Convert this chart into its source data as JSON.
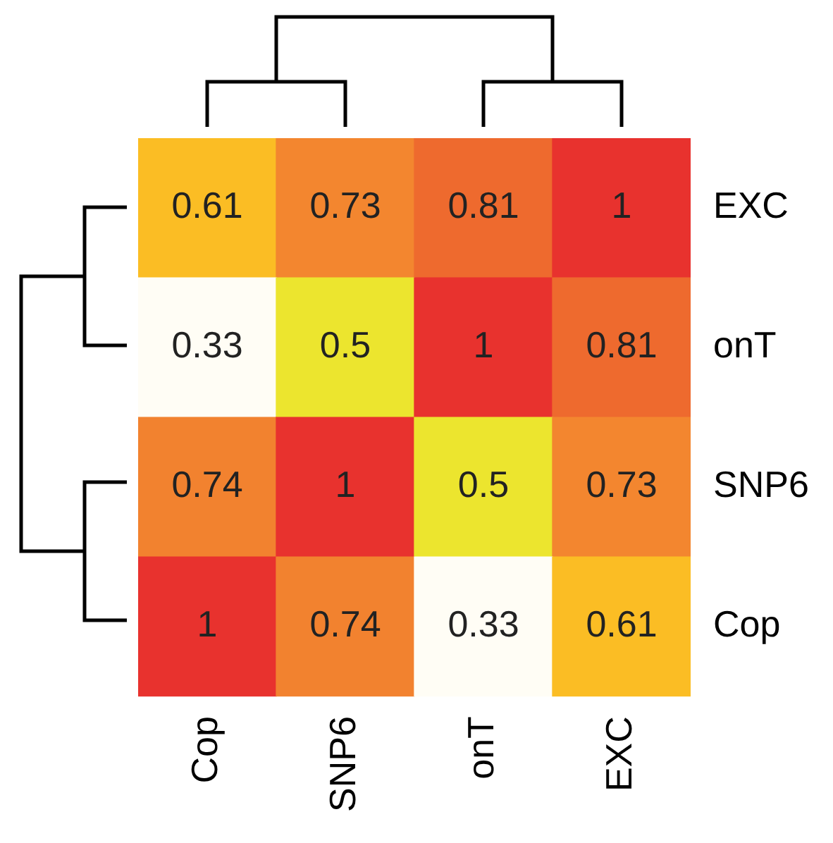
{
  "chart_data": {
    "type": "heatmap",
    "categories": [
      "Cop",
      "SNP6",
      "onT",
      "EXC"
    ],
    "y_categories": [
      "EXC",
      "onT",
      "SNP6",
      "Cop"
    ],
    "cells": [
      [
        0.61,
        0.73,
        0.81,
        1
      ],
      [
        0.33,
        0.5,
        1,
        0.81
      ],
      [
        0.74,
        1,
        0.5,
        0.73
      ],
      [
        1,
        0.74,
        0.33,
        0.61
      ]
    ],
    "data_labels": true
  }
}
